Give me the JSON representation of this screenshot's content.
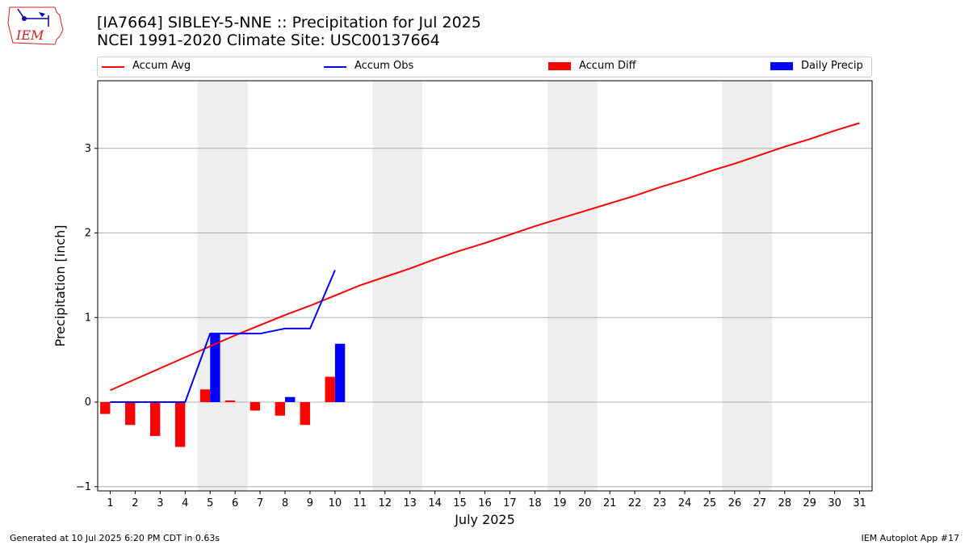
{
  "header": {
    "title_line1": "[IA7664] SIBLEY-5-NNE :: Precipitation for Jul 2025",
    "title_line2": "NCEI 1991-2020 Climate Site: USC00137664"
  },
  "logo": {
    "text": "IEM"
  },
  "footer": {
    "left": "Generated at 10 Jul 2025 6:20 PM CDT in 0.63s",
    "right": "IEM Autoplot App #17"
  },
  "colors": {
    "accum_avg": "#ff0000",
    "accum_obs": "#0000ff",
    "accum_diff": "#ff0000",
    "daily_precip": "#0000ff",
    "weekend_shade": "#eeeeee",
    "grid": "#b0b0b0"
  },
  "chart_data": {
    "type": "bar",
    "title": "[IA7664] SIBLEY-5-NNE :: Precipitation for Jul 2025",
    "subtitle": "NCEI 1991-2020 Climate Site: USC00137664",
    "xlabel": "July 2025",
    "ylabel": "Precipitation [inch]",
    "ylim": [
      -1.05,
      3.8
    ],
    "xlim": [
      0.5,
      31.5
    ],
    "yticks": [
      -1,
      0,
      1,
      2,
      3
    ],
    "ytick_labels": [
      "−1",
      "0",
      "1",
      "2",
      "3"
    ],
    "xticks": [
      1,
      2,
      3,
      4,
      5,
      6,
      7,
      8,
      9,
      10,
      11,
      12,
      13,
      14,
      15,
      16,
      17,
      18,
      19,
      20,
      21,
      22,
      23,
      24,
      25,
      26,
      27,
      28,
      29,
      30,
      31
    ],
    "xtick_labels": [
      "1",
      "2",
      "3",
      "4",
      "5",
      "6",
      "7",
      "8",
      "9",
      "10",
      "11",
      "12",
      "13",
      "14",
      "15",
      "16",
      "17",
      "18",
      "19",
      "20",
      "21",
      "22",
      "23",
      "24",
      "25",
      "26",
      "27",
      "28",
      "29",
      "30",
      "31"
    ],
    "grid": "horizontal",
    "legend_position": "top",
    "weekend_spans": [
      [
        4.5,
        6.5
      ],
      [
        11.5,
        13.5
      ],
      [
        18.5,
        20.5
      ],
      [
        25.5,
        27.5
      ]
    ],
    "series": [
      {
        "name": "Accum Avg",
        "kind": "line",
        "x": [
          1,
          2,
          3,
          4,
          5,
          6,
          7,
          8,
          9,
          10,
          11,
          12,
          13,
          14,
          15,
          16,
          17,
          18,
          19,
          20,
          21,
          22,
          23,
          24,
          25,
          26,
          27,
          28,
          29,
          30,
          31
        ],
        "values": [
          0.14,
          0.27,
          0.4,
          0.53,
          0.66,
          0.79,
          0.91,
          1.03,
          1.14,
          1.26,
          1.38,
          1.48,
          1.58,
          1.69,
          1.79,
          1.88,
          1.98,
          2.08,
          2.17,
          2.26,
          2.35,
          2.44,
          2.54,
          2.63,
          2.73,
          2.82,
          2.92,
          3.02,
          3.11,
          3.21,
          3.3
        ]
      },
      {
        "name": "Accum Obs",
        "kind": "line",
        "x": [
          1,
          2,
          3,
          4,
          5,
          6,
          7,
          8,
          9,
          10
        ],
        "values": [
          0.0,
          0.0,
          0.0,
          0.0,
          0.81,
          0.81,
          0.81,
          0.87,
          0.87,
          1.56
        ]
      },
      {
        "name": "Accum Diff",
        "kind": "bar",
        "x": [
          1,
          2,
          3,
          4,
          5,
          6,
          7,
          8,
          9,
          10
        ],
        "values": [
          -0.14,
          -0.27,
          -0.4,
          -0.53,
          0.15,
          0.02,
          -0.1,
          -0.16,
          -0.27,
          0.3
        ]
      },
      {
        "name": "Daily Precip",
        "kind": "bar",
        "x": [
          1,
          2,
          3,
          4,
          5,
          6,
          7,
          8,
          9,
          10
        ],
        "values": [
          0.0,
          0.0,
          0.0,
          0.0,
          0.81,
          0.0,
          0.0,
          0.06,
          0.0,
          0.69
        ]
      }
    ]
  }
}
